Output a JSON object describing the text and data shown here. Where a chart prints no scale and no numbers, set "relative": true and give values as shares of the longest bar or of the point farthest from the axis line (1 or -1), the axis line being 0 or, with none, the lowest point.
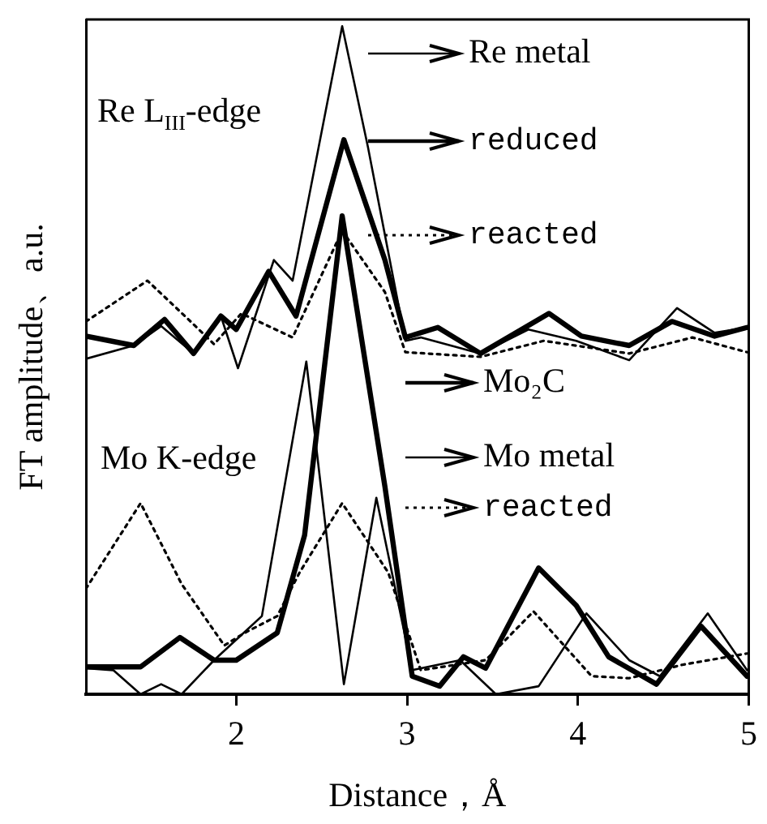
{
  "chart_data": {
    "type": "line",
    "xlabel": "Distance，Å",
    "ylabel": "FT amplitude、a.u.",
    "relative": true,
    "xlim": [
      1.12,
      5
    ],
    "xticks": [
      2,
      3,
      4,
      5
    ],
    "grid": false,
    "legend": "right",
    "marker": "none",
    "annotations": [
      "Re L$_{III}$-edge",
      "Mo K-edge"
    ],
    "series": [
      {
        "name": "Re metal",
        "color": "#000000",
        "line_style": "solid",
        "x": [
          1.12,
          1.4,
          1.56,
          1.75,
          1.91,
          2.01,
          2.22,
          2.33,
          2.62,
          2.77,
          2.99,
          3.08,
          3.43,
          3.71,
          3.99,
          4.3,
          4.58,
          4.8,
          4.99
        ],
        "values": [
          0.502,
          0.522,
          0.551,
          0.51,
          0.566,
          0.488,
          0.65,
          0.619,
          1.0,
          0.82,
          0.529,
          0.534,
          0.51,
          0.546,
          0.529,
          0.5,
          0.578,
          0.541,
          0.549
        ]
      },
      {
        "name": "reduced",
        "color": "#000000",
        "line_style": "solid",
        "x": [
          1.12,
          1.4,
          1.58,
          1.75,
          1.91,
          2.0,
          2.19,
          2.35,
          2.63,
          2.87,
          2.99,
          3.18,
          3.43,
          3.83,
          4.02,
          4.3,
          4.55,
          4.8,
          4.99
        ],
        "values": [
          0.536,
          0.522,
          0.561,
          0.51,
          0.566,
          0.546,
          0.633,
          0.566,
          0.83,
          0.65,
          0.534,
          0.549,
          0.51,
          0.57,
          0.536,
          0.522,
          0.558,
          0.536,
          0.549
        ]
      },
      {
        "name": "reacted",
        "color": "#000000",
        "line_style": "dotted",
        "x": [
          1.12,
          1.48,
          1.72,
          1.87,
          2.03,
          2.33,
          2.62,
          2.87,
          2.99,
          3.43,
          3.8,
          4.3,
          4.67,
          4.99
        ],
        "values": [
          0.558,
          0.619,
          0.561,
          0.524,
          0.57,
          0.534,
          0.694,
          0.602,
          0.512,
          0.505,
          0.529,
          0.51,
          0.534,
          0.512
        ]
      },
      {
        "name": "Mo₂C",
        "color": "#000000",
        "line_style": "solid",
        "x": [
          1.12,
          1.44,
          1.67,
          1.87,
          2.0,
          2.24,
          2.4,
          2.62,
          2.87,
          3.03,
          3.19,
          3.33,
          3.46,
          3.77,
          3.99,
          4.18,
          4.46,
          4.72,
          4.99
        ],
        "values": [
          0.041,
          0.041,
          0.085,
          0.051,
          0.051,
          0.092,
          0.238,
          0.716,
          0.311,
          0.027,
          0.012,
          0.056,
          0.039,
          0.189,
          0.133,
          0.056,
          0.015,
          0.102,
          0.027
        ]
      },
      {
        "name": "Mo metal",
        "color": "#000000",
        "line_style": "solid",
        "x": [
          1.12,
          1.28,
          1.44,
          1.56,
          1.68,
          1.87,
          2.15,
          2.41,
          2.63,
          2.82,
          3.03,
          3.31,
          3.52,
          3.77,
          4.05,
          4.3,
          4.48,
          4.76,
          4.99
        ],
        "values": [
          0.039,
          0.036,
          0.0,
          0.015,
          0.0,
          0.051,
          0.117,
          0.498,
          0.015,
          0.294,
          0.036,
          0.051,
          0.0,
          0.012,
          0.121,
          0.051,
          0.027,
          0.121,
          0.036
        ]
      },
      {
        "name": "reacted",
        "color": "#000000",
        "line_style": "dotted",
        "x": [
          1.12,
          1.44,
          1.68,
          1.93,
          2.05,
          2.24,
          2.37,
          2.62,
          2.89,
          3.08,
          3.46,
          3.74,
          4.08,
          4.3,
          4.61,
          4.99
        ],
        "values": [
          0.158,
          0.286,
          0.165,
          0.073,
          0.092,
          0.117,
          0.182,
          0.286,
          0.182,
          0.036,
          0.051,
          0.124,
          0.027,
          0.024,
          0.044,
          0.061
        ]
      }
    ]
  }
}
